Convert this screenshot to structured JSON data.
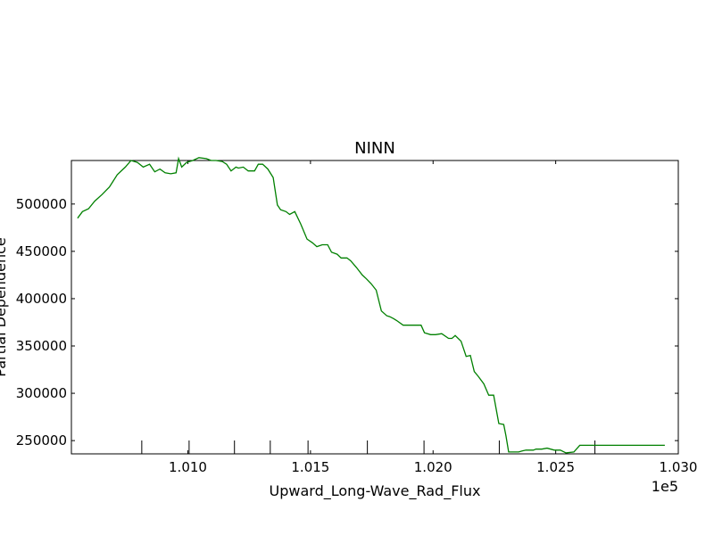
{
  "chart_data": {
    "type": "line",
    "title": "NINN",
    "xlabel": "Upward_Long-Wave_Rad_Flux",
    "ylabel": "Partial Dependence",
    "x_offset_label": "1e5",
    "xlim": [
      100525,
      103000
    ],
    "ylim": [
      236000,
      546000
    ],
    "x_ticks": [
      101000,
      101500,
      102000,
      102500,
      103000
    ],
    "x_tick_labels": [
      "1.010",
      "1.015",
      "1.020",
      "1.025",
      "1.030"
    ],
    "y_ticks": [
      250000,
      300000,
      350000,
      400000,
      450000,
      500000
    ],
    "y_tick_labels": [
      "250000",
      "300000",
      "350000",
      "400000",
      "450000",
      "500000"
    ],
    "rug_x": [
      100812,
      101005,
      101190,
      101336,
      101490,
      101732,
      101963,
      102270,
      102660
    ],
    "grid": false,
    "line_color": "#008000",
    "series": [
      {
        "name": "",
        "x": [
          100550,
          100570,
          100595,
          100620,
          100650,
          100680,
          100712,
          100745,
          100768,
          100794,
          100818,
          100844,
          100865,
          100886,
          100907,
          100930,
          100952,
          100962,
          100975,
          100995,
          101020,
          101045,
          101075,
          101095,
          101115,
          101140,
          101158,
          101176,
          101196,
          101206,
          101226,
          101246,
          101272,
          101287,
          101305,
          101326,
          101348,
          101365,
          101378,
          101400,
          101415,
          101436,
          101460,
          101486,
          101508,
          101526,
          101548,
          101570,
          101586,
          101609,
          101625,
          101649,
          101664,
          101687,
          101711,
          101728,
          101747,
          101768,
          101789,
          101811,
          101823,
          101838,
          101851,
          101878,
          101907,
          101933,
          101951,
          101965,
          101990,
          102010,
          102035,
          102063,
          102077,
          102090,
          102114,
          102135,
          102152,
          102168,
          102184,
          102207,
          102227,
          102247,
          102268,
          102288,
          102297,
          102308,
          102329,
          102349,
          102363,
          102379,
          102395,
          102409,
          102420,
          102428,
          102443,
          102465,
          102494,
          102519,
          102542,
          102574,
          102598,
          102623,
          102644,
          102660,
          102692,
          102734,
          102759,
          102780,
          102803,
          102821,
          102835,
          102858,
          102876,
          102899,
          102924,
          102950
        ],
        "y": [
          485000,
          492000,
          495000,
          503000,
          510000,
          518000,
          531000,
          539000,
          546000,
          544000,
          539000,
          542000,
          534000,
          537000,
          533000,
          532000,
          533000,
          548000,
          539000,
          544000,
          546000,
          549000,
          548000,
          546000,
          546000,
          545000,
          542000,
          535000,
          539000,
          538000,
          539000,
          535000,
          535000,
          542000,
          542000,
          537000,
          528000,
          499000,
          494000,
          492000,
          489000,
          492000,
          479000,
          463000,
          459000,
          455000,
          457000,
          457000,
          449000,
          447000,
          443000,
          443000,
          440000,
          433000,
          425000,
          421000,
          416000,
          409000,
          387000,
          382000,
          381000,
          379000,
          377000,
          372000,
          372000,
          372000,
          372000,
          364000,
          362000,
          362000,
          363000,
          358000,
          358000,
          361000,
          355000,
          339000,
          340000,
          323000,
          318000,
          310000,
          298000,
          298000,
          268000,
          267000,
          255000,
          238000,
          238000,
          238000,
          239000,
          240000,
          240000,
          240000,
          241000,
          241000,
          241000,
          242000,
          240000,
          240000,
          237000,
          238000,
          245000,
          245000,
          245000,
          245000,
          245000,
          245000,
          245000,
          245000,
          245000,
          245000,
          245000,
          245000,
          245000,
          245000,
          245000,
          245000
        ],
        "x_end": 102945
      }
    ]
  }
}
